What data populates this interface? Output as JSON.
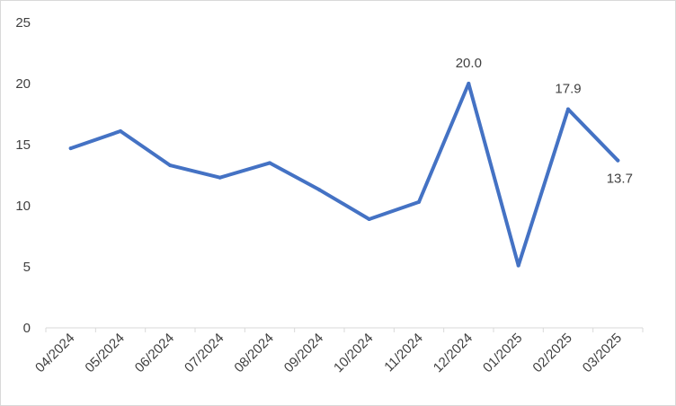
{
  "chart_data": {
    "type": "line",
    "categories": [
      "04/2024",
      "05/2024",
      "06/2024",
      "07/2024",
      "08/2024",
      "09/2024",
      "10/2024",
      "11/2024",
      "12/2024",
      "01/2025",
      "02/2025",
      "03/2025"
    ],
    "series": [
      {
        "values": [
          14.7,
          16.1,
          13.3,
          12.3,
          13.5,
          11.3,
          8.9,
          10.3,
          20.0,
          5.1,
          17.9,
          13.7
        ],
        "color": "#4472c4"
      }
    ],
    "data_labels": [
      {
        "index": 8,
        "text": "20.0"
      },
      {
        "index": 10,
        "text": "17.9"
      },
      {
        "index": 11,
        "text": "13.7"
      }
    ],
    "y_ticks": [
      "0",
      "5",
      "10",
      "15",
      "20",
      "25"
    ],
    "ylim": [
      0,
      25
    ],
    "title": "",
    "xlabel": "",
    "ylabel": "",
    "grid": false,
    "legend": "none"
  }
}
